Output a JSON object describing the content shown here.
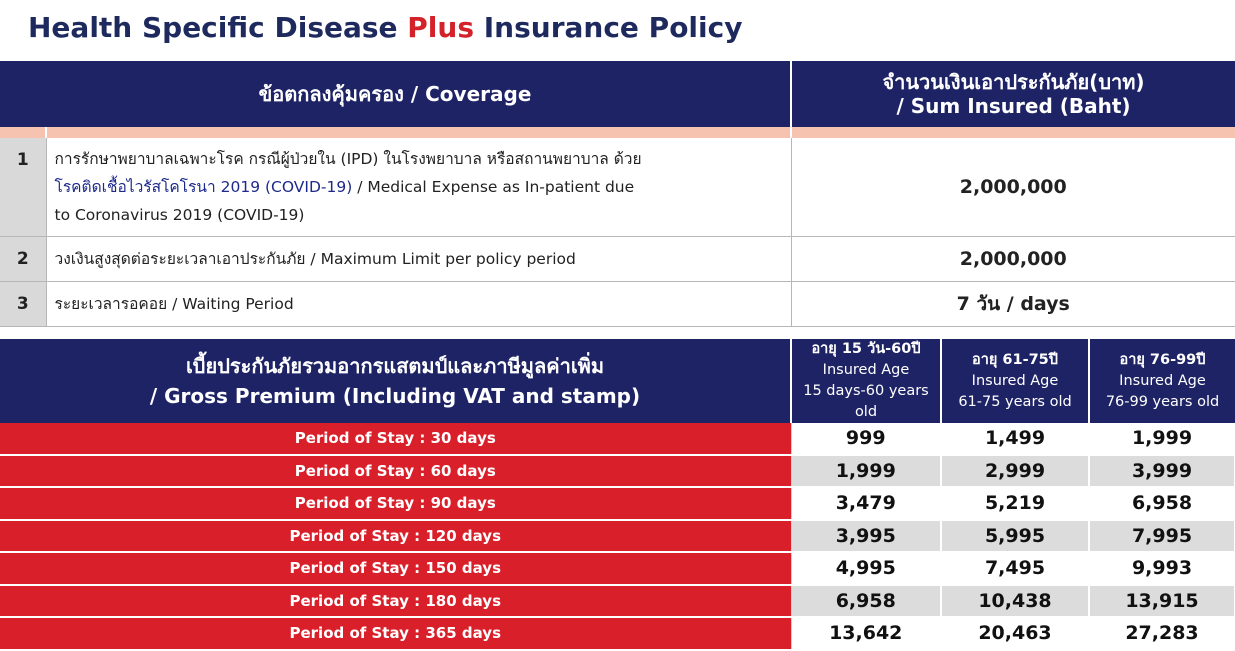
{
  "title": {
    "prefix": "Health Specific Disease ",
    "highlight": "Plus",
    "suffix": " Insurance Policy"
  },
  "coverage": {
    "header": {
      "coverage": "ข้อตกลงคุ้มครอง / Coverage",
      "sum_line1": "จำนวนเงินเอาประกันภัย(บาท)",
      "sum_line2": "/ Sum Insured (Baht)"
    },
    "rows": [
      {
        "num": "1",
        "desc_line1": "การรักษาพยาบาลเฉพาะโรค กรณีผู้ป่วยใน (IPD) ในโรงพยาบาล หรือสถานพยาบาล ด้วย",
        "desc_line2_blue": "โรคติดเชื้อไวรัสโคโรนา 2019 (COVID-19)",
        "desc_line2_rest": " / Medical Expense as In-patient due",
        "desc_line3": "to Coronavirus 2019 (COVID-19)",
        "amount": "2,000,000"
      },
      {
        "num": "2",
        "desc": "วงเงินสูงสุดต่อระยะเวลาเอาประกันภัย / Maximum Limit per policy period",
        "amount": "2,000,000"
      },
      {
        "num": "3",
        "desc": "ระยะเวลารอคอย / Waiting Period",
        "amount": "7 วัน / days"
      }
    ]
  },
  "premium": {
    "header": {
      "line1": "เบี้ยประกันภัยรวมอากรแสตมป์และภาษีมูลค่าเพิ่ม",
      "line2": "/ Gross Premium (Including VAT and stamp)",
      "ages": [
        {
          "thai": "อายุ 15 วัน-60ปี",
          "label": "Insured Age",
          "range": "15 days-60 years old"
        },
        {
          "thai": "อายุ 61-75ปี",
          "label": "Insured Age",
          "range": "61-75 years old"
        },
        {
          "thai": "อายุ 76-99ปี",
          "label": "Insured Age",
          "range": "76-99 years old"
        }
      ]
    },
    "rows": [
      {
        "period": "Period of Stay : 30 days",
        "values": [
          "999",
          "1,499",
          "1,999"
        ]
      },
      {
        "period": "Period of Stay : 60 days",
        "values": [
          "1,999",
          "2,999",
          "3,999"
        ]
      },
      {
        "period": "Period of Stay : 90 days",
        "values": [
          "3,479",
          "5,219",
          "6,958"
        ]
      },
      {
        "period": "Period of Stay : 120 days",
        "values": [
          "3,995",
          "5,995",
          "7,995"
        ]
      },
      {
        "period": "Period of Stay : 150 days",
        "values": [
          "4,995",
          "7,495",
          "9,993"
        ]
      },
      {
        "period": "Period of Stay : 180 days",
        "values": [
          "6,958",
          "10,438",
          "13,915"
        ]
      },
      {
        "period": "Period of Stay : 365 days",
        "values": [
          "13,642",
          "20,463",
          "27,283"
        ]
      }
    ]
  },
  "colors": {
    "navy": "#1e2366",
    "red": "#d9202a",
    "pink": "#f5c3b0",
    "gray": "#dcdcdc"
  }
}
